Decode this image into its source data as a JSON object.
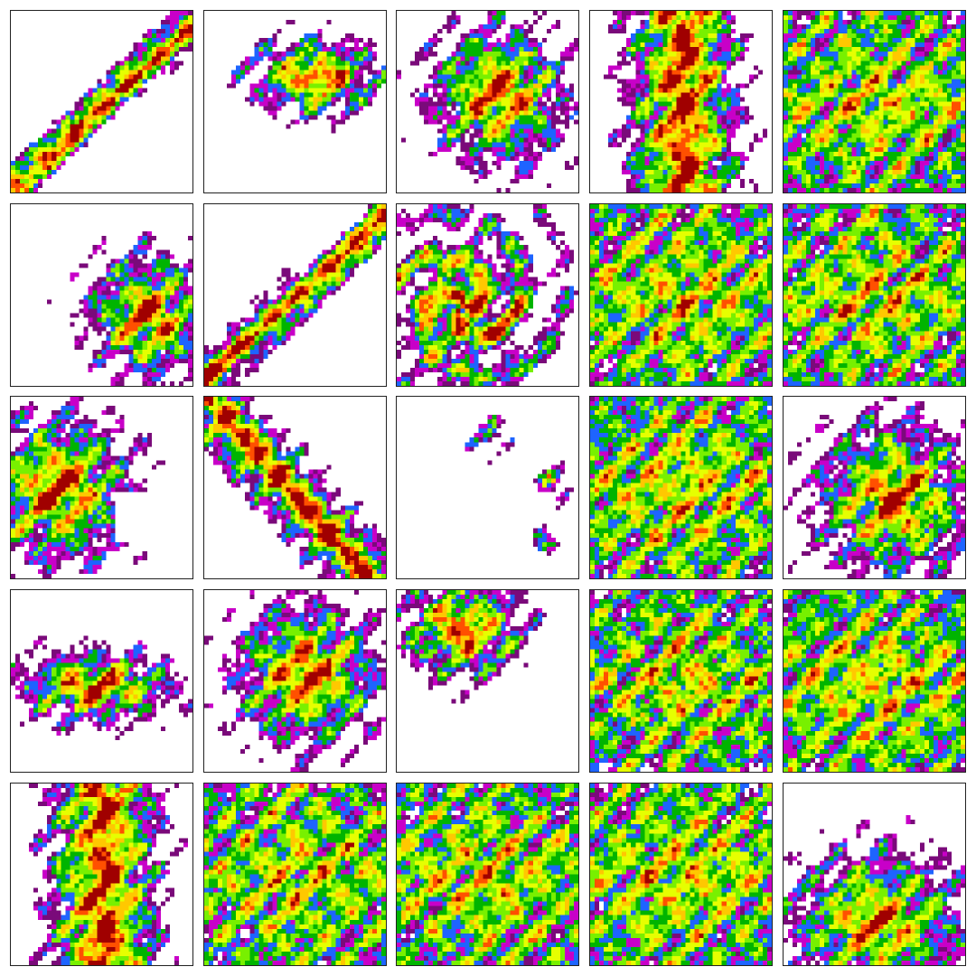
{
  "figure": {
    "rows": 5,
    "cols": 5,
    "background": "#ffffff",
    "border_color": "#222222",
    "colormap": [
      "#ffffff",
      "#7a0a7a",
      "#c800c8",
      "#1e64ff",
      "#00b400",
      "#78f000",
      "#e6ff00",
      "#ffc800",
      "#ff5000",
      "#a00000"
    ],
    "panels": [
      {
        "id": "r1c1",
        "pattern": "diagonal-streak",
        "coverage": 0.35
      },
      {
        "id": "r1c2",
        "pattern": "upper-right-mass",
        "coverage": 0.6
      },
      {
        "id": "r1c3",
        "pattern": "central-blob",
        "coverage": 0.65
      },
      {
        "id": "r1c4",
        "pattern": "vertical-band",
        "coverage": 0.7
      },
      {
        "id": "r1c5",
        "pattern": "broad-field",
        "coverage": 0.8
      },
      {
        "id": "r2c1",
        "pattern": "lower-right-mass",
        "coverage": 0.45
      },
      {
        "id": "r2c2",
        "pattern": "diagonal-streak",
        "coverage": 0.5
      },
      {
        "id": "r2c3",
        "pattern": "cyclone",
        "coverage": 0.75
      },
      {
        "id": "r2c4",
        "pattern": "broad-field",
        "coverage": 0.8
      },
      {
        "id": "r2c5",
        "pattern": "broad-field",
        "coverage": 0.8
      },
      {
        "id": "r3c1",
        "pattern": "left-mass",
        "coverage": 0.7
      },
      {
        "id": "r3c2",
        "pattern": "diagonal-band",
        "coverage": 0.6
      },
      {
        "id": "r3c3",
        "pattern": "sparse-cells",
        "coverage": 0.2
      },
      {
        "id": "r3c4",
        "pattern": "broad-field",
        "coverage": 0.85
      },
      {
        "id": "r3c5",
        "pattern": "right-mass",
        "coverage": 0.7
      },
      {
        "id": "r4c1",
        "pattern": "left-jet",
        "coverage": 0.7
      },
      {
        "id": "r4c2",
        "pattern": "central-blob",
        "coverage": 0.8
      },
      {
        "id": "r4c3",
        "pattern": "upper-mass",
        "coverage": 0.45
      },
      {
        "id": "r4c4",
        "pattern": "broad-field",
        "coverage": 0.7
      },
      {
        "id": "r4c5",
        "pattern": "broad-field",
        "coverage": 0.9
      },
      {
        "id": "r5c1",
        "pattern": "vertical-band",
        "coverage": 0.7
      },
      {
        "id": "r5c2",
        "pattern": "broad-field",
        "coverage": 0.75
      },
      {
        "id": "r5c3",
        "pattern": "broad-field",
        "coverage": 0.8
      },
      {
        "id": "r5c4",
        "pattern": "broad-field",
        "coverage": 0.85
      },
      {
        "id": "r5c5",
        "pattern": "lower-mass",
        "coverage": 0.75
      }
    ]
  }
}
